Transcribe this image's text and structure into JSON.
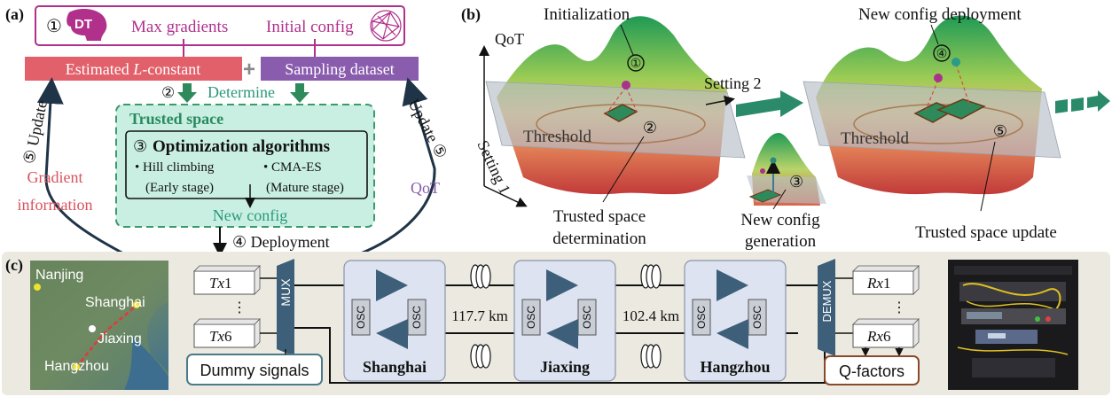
{
  "panel_a": {
    "label": "(a)",
    "dt_circle_num": "①",
    "dt_badge": "DT",
    "max_gradients": "Max gradients",
    "initial_config": "Initial config",
    "estimated_l_prefix": "Estimated ",
    "estimated_l_italic": "L",
    "estimated_l_suffix": "-constant",
    "plus": "+",
    "sampling_dataset": "Sampling dataset",
    "step2": "②",
    "determine": "Determine",
    "trusted_space": "Trusted space",
    "step3": "③",
    "optimization_algorithms": "Optimization algorithms",
    "hill_climbing": "• Hill climbing",
    "early_stage": "(Early stage)",
    "cma_es": "• CMA-ES",
    "mature_stage": "(Mature stage)",
    "new_config": "New config",
    "step4_deployment": "④ Deployment",
    "update_left": "⑤ Update",
    "update_right": "Update ⑤",
    "gradient_information_1": "Gradient",
    "gradient_information_2": "information",
    "qot": "QoT"
  },
  "panel_b": {
    "label": "(b)",
    "qot_axis": "QoT",
    "initialization": "Initialization",
    "new_config_deployment": "New config deployment",
    "setting2": "Setting 2",
    "setting1": "Setting 1",
    "threshold_left": "Threshold",
    "threshold_right": "Threshold",
    "c1": "①",
    "c2": "②",
    "c3": "③",
    "c4": "④",
    "c5": "⑤",
    "trusted_space_determination_1": "Trusted space",
    "trusted_space_determination_2": "determination",
    "new_config_generation_1": "New config",
    "new_config_generation_2": "generation",
    "trusted_space_update": "Trusted space update"
  },
  "panel_c": {
    "label": "(c)",
    "map_cities": [
      "Nanjing",
      "Shanghai",
      "Jiaxing",
      "Hangzhou"
    ],
    "tx1_italic": "Tx",
    "tx1_num": "1",
    "tx6_italic": "Tx",
    "tx6_num": "6",
    "vdots": "⋮",
    "mux": "MUX",
    "demux": "DEMUX",
    "dummy_signals": "Dummy signals",
    "osc": "OSC",
    "span1": "117.7 km",
    "span2": "102.4 km",
    "node1": "Shanghai",
    "node2": "Jiaxing",
    "node3": "Hangzhou",
    "rx1_italic": "Rx",
    "rx1_num": "1",
    "rx6_italic": "Rx",
    "rx6_num": "6",
    "q_factors": "Q-factors"
  },
  "colors": {
    "magenta": "#b0308c",
    "red_box": "#e2606a",
    "purple_box": "#8a5cae",
    "green_arrow": "#2e8a5a",
    "trusted_fill": "#c9efe2",
    "trusted_border": "#3a9a6c",
    "teal_text": "#2a9a7a",
    "gradient_text": "#d9525e",
    "dark_navy": "#203447",
    "node_fill": "#dde3f1",
    "amp_blue": "#3e5f7a"
  }
}
